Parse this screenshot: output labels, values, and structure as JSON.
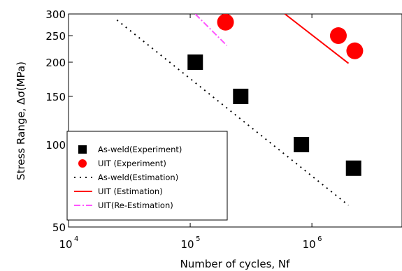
{
  "chart_data": {
    "type": "scatter",
    "title": "",
    "xlabel": "Number of cycles, Nf",
    "ylabel": "Stress Range, Δσ(MPa)",
    "x_scale": "log",
    "y_scale": "log",
    "xlim": [
      10000,
      5500000
    ],
    "ylim": [
      50,
      300
    ],
    "grid": false,
    "legend_position": "bottom-left",
    "x_ticks": [
      {
        "value": 10000,
        "base": "10",
        "exp": "4"
      },
      {
        "value": 100000,
        "base": "10",
        "exp": "5"
      },
      {
        "value": 1000000,
        "base": "10",
        "exp": "6"
      }
    ],
    "y_ticks": [
      {
        "value": 50,
        "label": "50"
      },
      {
        "value": 100,
        "label": "100"
      },
      {
        "value": 150,
        "label": "150"
      },
      {
        "value": 200,
        "label": "200"
      },
      {
        "value": 250,
        "label": "250"
      },
      {
        "value": 300,
        "label": "300"
      }
    ],
    "series": [
      {
        "name": "As-weld(Experiment)",
        "kind": "marker",
        "marker": "square",
        "color": "#000000",
        "points": [
          [
            110000,
            200
          ],
          [
            260000,
            150
          ],
          [
            820000,
            100
          ],
          [
            2200000,
            82
          ]
        ]
      },
      {
        "name": "UIT  (Experiment)",
        "kind": "marker",
        "marker": "circle",
        "color": "#ff0000",
        "points": [
          [
            195000,
            280
          ],
          [
            1650000,
            250
          ],
          [
            2250000,
            220
          ]
        ]
      },
      {
        "name": "As-weld(Estimation)",
        "kind": "line",
        "dash": "2,6",
        "color": "#000000",
        "points": [
          [
            25000,
            285
          ],
          [
            2000000,
            60
          ]
        ]
      },
      {
        "name": "UIT  (Estimation)",
        "kind": "line",
        "dash": "",
        "color": "#ff0000",
        "points": [
          [
            600000,
            300
          ],
          [
            2000000,
            198
          ]
        ]
      },
      {
        "name": "UIT(Re-Estimation)",
        "kind": "line",
        "dash": "9,3,2,3",
        "color": "#ff55ff",
        "points": [
          [
            110000,
            300
          ],
          [
            200000,
            230
          ]
        ]
      }
    ]
  }
}
